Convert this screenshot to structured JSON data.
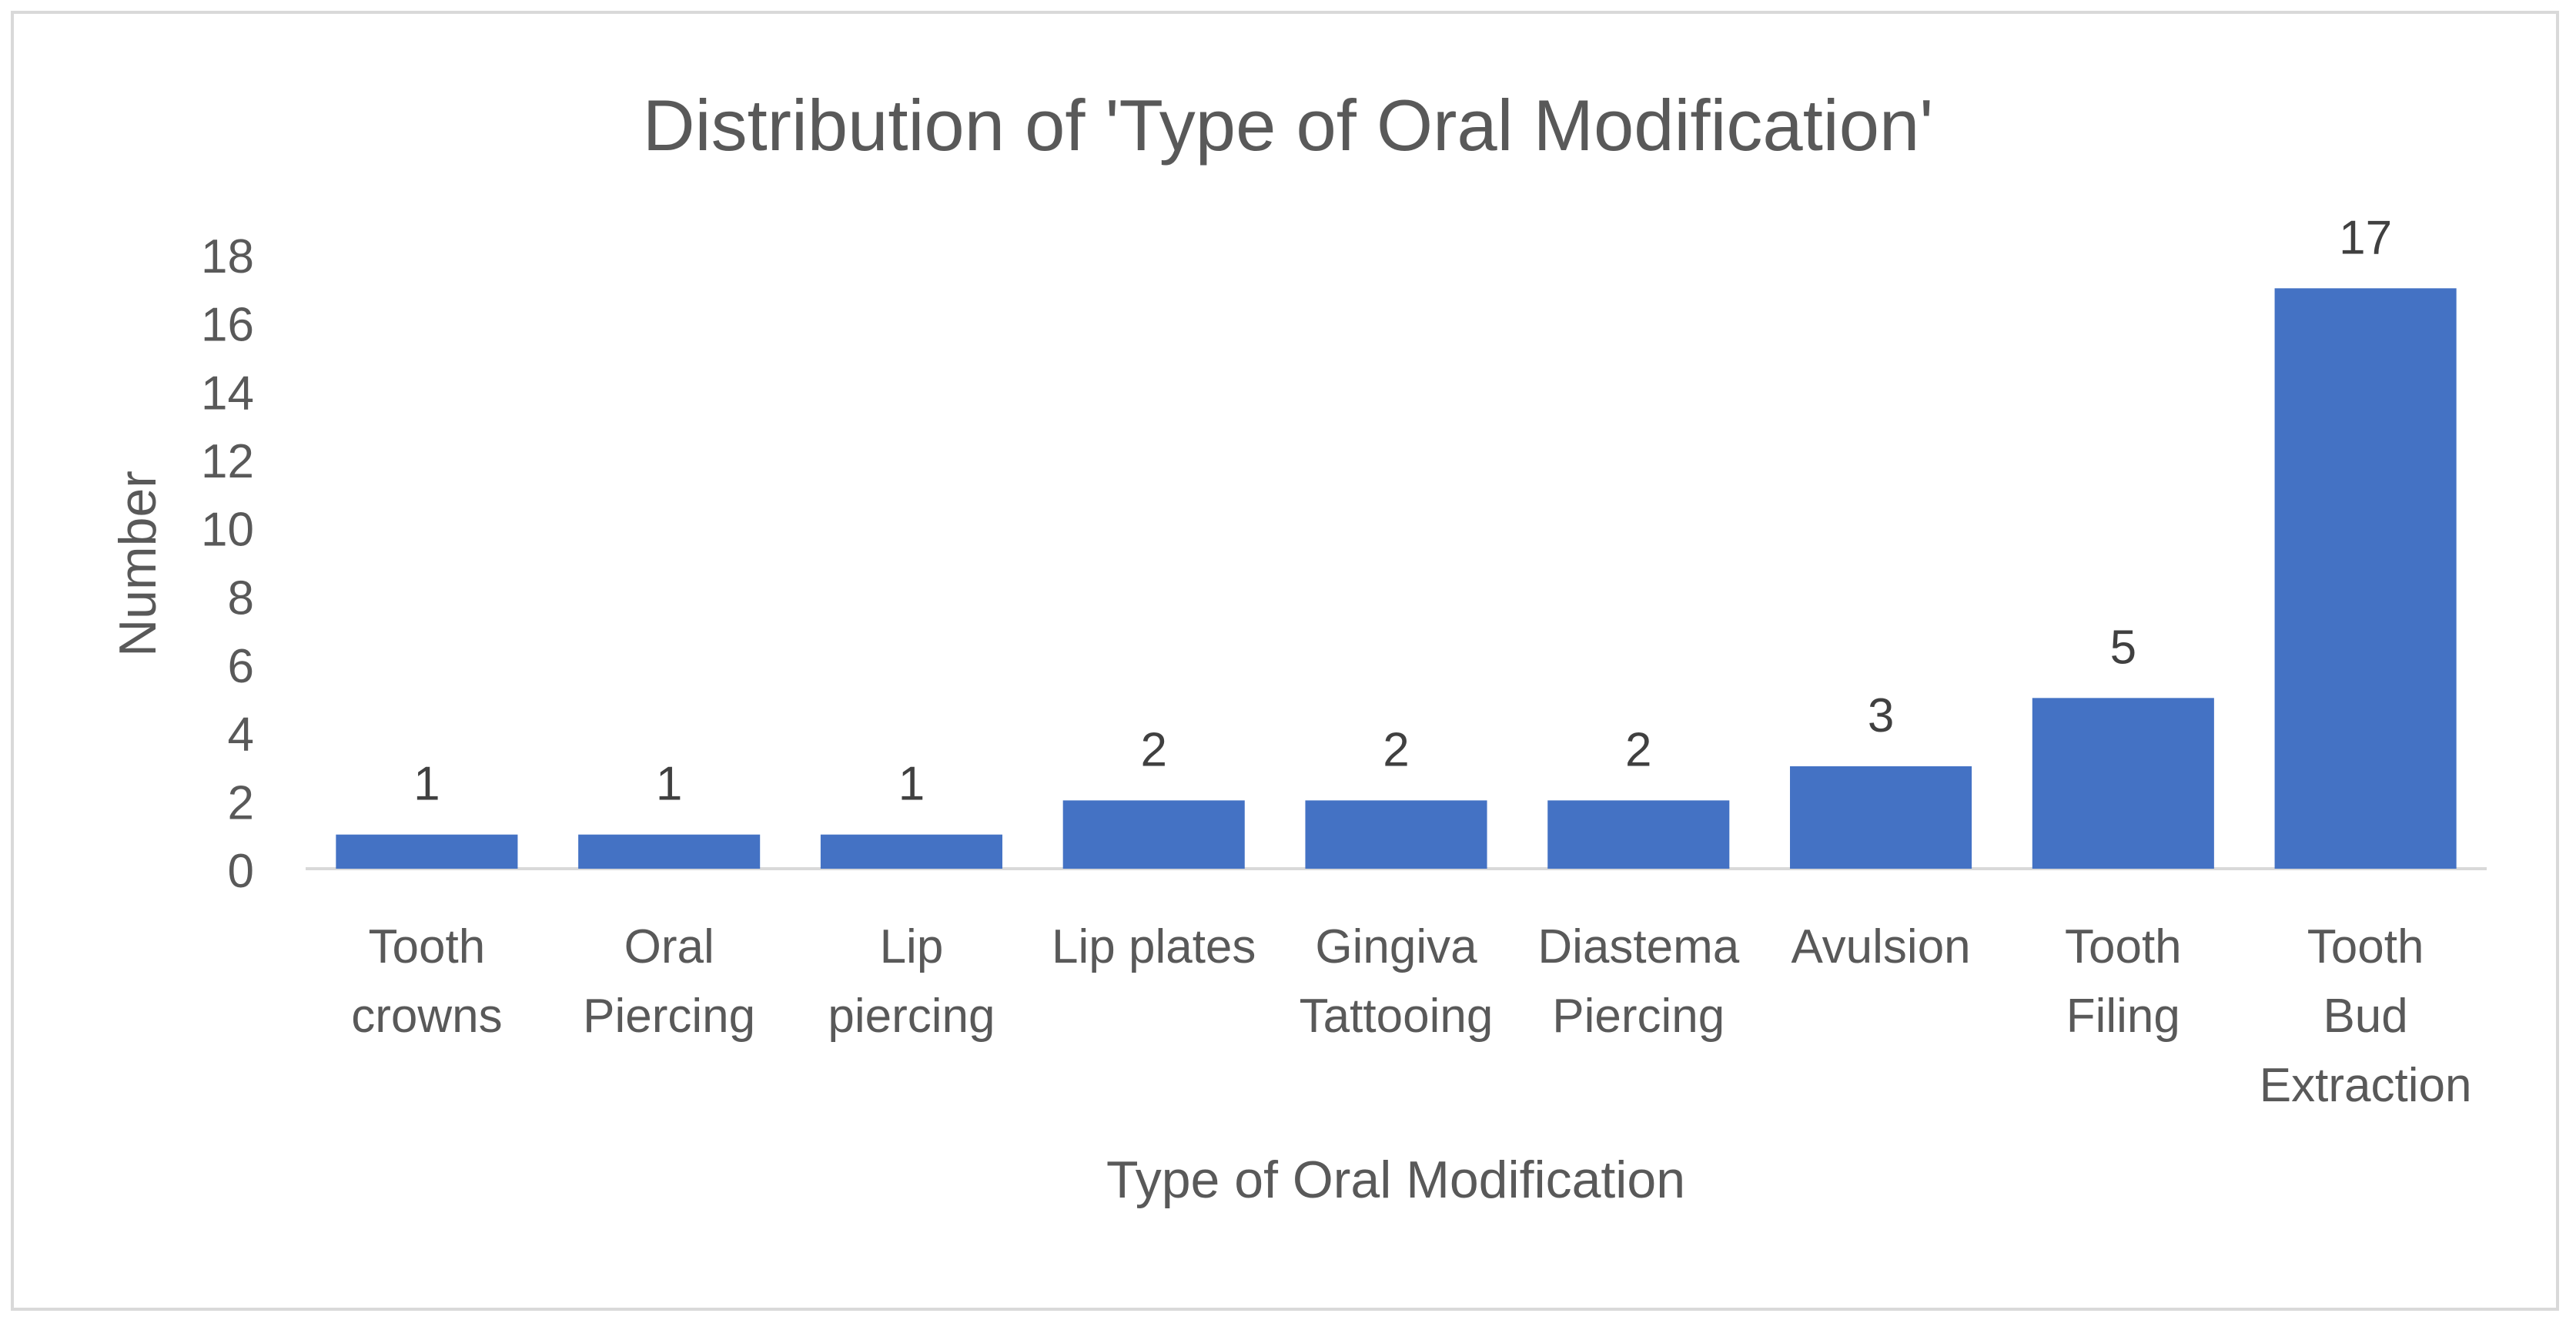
{
  "chart_data": {
    "type": "bar",
    "title": "Distribution of 'Type of Oral Modification'",
    "xlabel": "Type of Oral Modification",
    "ylabel": "Number",
    "categories": [
      [
        "Tooth",
        "crowns"
      ],
      [
        "Oral",
        "Piercing"
      ],
      [
        "Lip",
        "piercing"
      ],
      [
        "Lip plates"
      ],
      [
        "Gingiva",
        "Tattooing"
      ],
      [
        "Diastema",
        "Piercing"
      ],
      [
        "Avulsion"
      ],
      [
        "Tooth",
        "Filing"
      ],
      [
        "Tooth",
        "Bud",
        "Extraction"
      ]
    ],
    "values": [
      1,
      1,
      1,
      2,
      2,
      2,
      3,
      5,
      17
    ],
    "data_labels": [
      "1",
      "1",
      "1",
      "2",
      "2",
      "2",
      "3",
      "5",
      "17"
    ],
    "ylim": [
      0,
      18
    ],
    "yticks": [
      0,
      2,
      4,
      6,
      8,
      10,
      12,
      14,
      16,
      18
    ],
    "grid": false,
    "legend": "none",
    "colors": {
      "bar": "#4472c4",
      "text": "#595959",
      "label": "#404040",
      "axis": "#d9d9d9"
    }
  }
}
